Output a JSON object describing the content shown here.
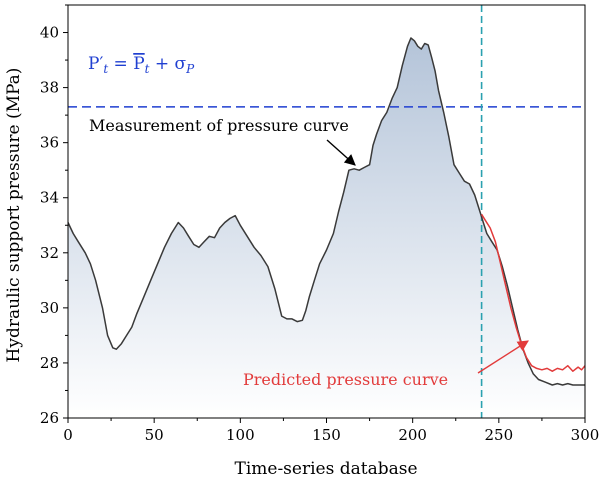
{
  "chart_data": {
    "type": "line",
    "xlabel": "Time-series database",
    "ylabel": "Hydraulic support pressure (MPa)",
    "xlim": [
      0,
      300
    ],
    "ylim": [
      26,
      41
    ],
    "xticks": [
      0,
      50,
      100,
      150,
      200,
      250,
      300
    ],
    "yticks": [
      26,
      28,
      30,
      32,
      34,
      36,
      38,
      40
    ],
    "grid": false,
    "threshold": {
      "y": 37.3,
      "color": "#1f3fd1",
      "label": "P′t = P̄t + σP"
    },
    "vline": {
      "x": 240,
      "color": "#2aa1b0"
    },
    "series": [
      {
        "name": "Measurement of pressure curve",
        "color": "#3a3a3a",
        "fill_top": "#b4c4d9",
        "fill_bottom": "#ffffff",
        "x": [
          0,
          3,
          6,
          10,
          13,
          16,
          20,
          23,
          26,
          28,
          31,
          34,
          37,
          40,
          44,
          48,
          52,
          56,
          60,
          64,
          67,
          70,
          73,
          76,
          79,
          82,
          85,
          88,
          91,
          94,
          97,
          100,
          104,
          108,
          112,
          116,
          120,
          124,
          127,
          130,
          133,
          136,
          138,
          140,
          143,
          146,
          150,
          154,
          157,
          160,
          163,
          166,
          169,
          172,
          175,
          177,
          179,
          182,
          185,
          188,
          191,
          194,
          197,
          199,
          201,
          203,
          205,
          207,
          209,
          211,
          213,
          215,
          218,
          221,
          224,
          227,
          230,
          233,
          236,
          239,
          241,
          243,
          246,
          249,
          252,
          255,
          258,
          261,
          264,
          267,
          270,
          273,
          277,
          281,
          284,
          287,
          290,
          293,
          296,
          300
        ],
        "y": [
          33.1,
          32.7,
          32.4,
          32.0,
          31.6,
          31.0,
          30.0,
          29.0,
          28.55,
          28.5,
          28.7,
          29.0,
          29.3,
          29.8,
          30.4,
          31.0,
          31.6,
          32.2,
          32.7,
          33.1,
          32.9,
          32.6,
          32.3,
          32.2,
          32.4,
          32.6,
          32.55,
          32.9,
          33.1,
          33.25,
          33.35,
          33.0,
          32.6,
          32.2,
          31.9,
          31.5,
          30.7,
          29.7,
          29.6,
          29.6,
          29.5,
          29.55,
          29.9,
          30.4,
          31.0,
          31.6,
          32.1,
          32.7,
          33.5,
          34.2,
          35.0,
          35.05,
          35.0,
          35.1,
          35.2,
          35.9,
          36.3,
          36.8,
          37.1,
          37.6,
          38.0,
          38.8,
          39.5,
          39.8,
          39.7,
          39.5,
          39.4,
          39.6,
          39.55,
          39.1,
          38.6,
          37.9,
          37.1,
          36.2,
          35.2,
          34.9,
          34.6,
          34.5,
          34.1,
          33.5,
          33.1,
          32.7,
          32.4,
          32.1,
          31.5,
          30.8,
          30.0,
          29.2,
          28.5,
          28.0,
          27.6,
          27.4,
          27.3,
          27.2,
          27.25,
          27.2,
          27.25,
          27.2,
          27.2,
          27.2
        ]
      },
      {
        "name": "Predicted pressure curve",
        "color": "#e23b3b",
        "x": [
          240,
          242,
          245,
          248,
          251,
          254,
          257,
          260,
          263,
          266,
          269,
          272,
          275,
          278,
          281,
          284,
          287,
          290,
          293,
          296,
          298,
          300
        ],
        "y": [
          33.4,
          33.2,
          32.9,
          32.4,
          31.6,
          30.8,
          30.0,
          29.3,
          28.7,
          28.2,
          27.9,
          27.8,
          27.75,
          27.8,
          27.7,
          27.8,
          27.75,
          27.9,
          27.7,
          27.85,
          27.75,
          27.9
        ]
      }
    ],
    "annotations": [
      {
        "text": "Measurement of pressure curve",
        "color": "#000000"
      },
      {
        "text": "Predicted pressure curve",
        "color": "#e23b3b"
      }
    ]
  }
}
